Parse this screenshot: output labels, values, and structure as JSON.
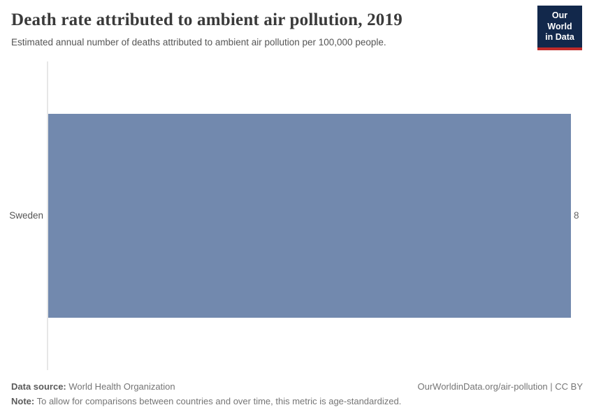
{
  "header": {
    "title": "Death rate attributed to ambient air pollution, 2019",
    "subtitle": "Estimated annual number of deaths attributed to ambient air pollution per 100,000 people.",
    "logo": {
      "line1": "Our World",
      "line2": "in Data",
      "background_color": "#12284b",
      "accent_color": "#c12b2a"
    }
  },
  "chart_data": {
    "type": "bar",
    "orientation": "horizontal",
    "categories": [
      "Sweden"
    ],
    "values": [
      8
    ],
    "value_labels": [
      "8"
    ],
    "title": "Death rate attributed to ambient air pollution, 2019",
    "subtitle": "Estimated annual number of deaths attributed to ambient air pollution per 100,000 people.",
    "xlabel": "",
    "ylabel": "",
    "xlim": [
      0,
      8
    ],
    "grid": false,
    "legend": "none",
    "bar_color": "#7289ae",
    "axis_line_color": "#e7e7e7"
  },
  "footer": {
    "source_label": "Data source:",
    "source_value": " World Health Organization",
    "note_label": "Note:",
    "note_value": " To allow for comparisons between countries and over time, this metric is age-standardized.",
    "attribution": "OurWorldinData.org/air-pollution | CC BY"
  }
}
